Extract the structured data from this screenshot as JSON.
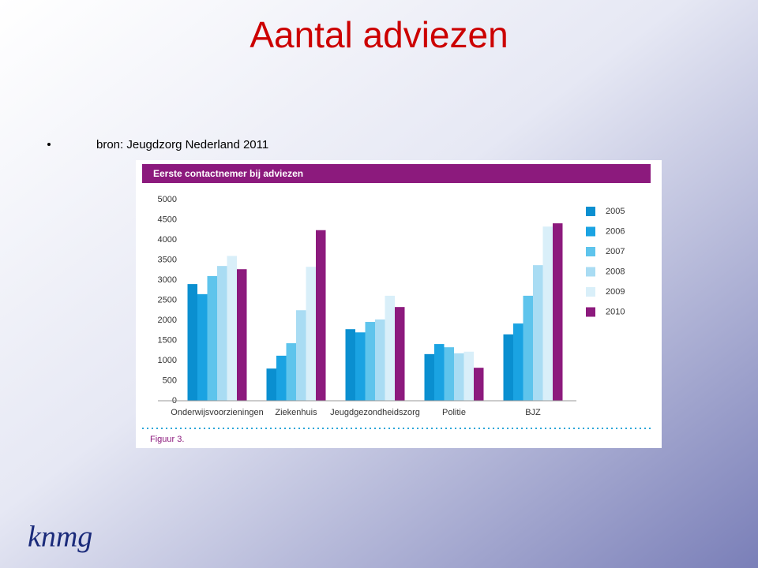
{
  "slide": {
    "title": "Aantal adviezen",
    "bullet": "bron: Jeugdzorg Nederland 2011",
    "logo": "knmg"
  },
  "chart_data": {
    "type": "bar",
    "title": "Eerste contactnemer bij adviezen",
    "caption": "Figuur 3.",
    "categories": [
      "Onderwijsvoorzieningen",
      "Ziekenhuis",
      "Jeugdgezondheidszorg",
      "Politie",
      "BJZ"
    ],
    "series": [
      {
        "name": "2005",
        "color": "#0a8fd0",
        "values": [
          2900,
          800,
          1780,
          1160,
          1650
        ]
      },
      {
        "name": "2006",
        "color": "#1aa3e2",
        "values": [
          2650,
          1120,
          1700,
          1410,
          1920
        ]
      },
      {
        "name": "2007",
        "color": "#5ec4ec",
        "values": [
          3100,
          1430,
          1960,
          1330,
          2610
        ]
      },
      {
        "name": "2008",
        "color": "#a9dcf3",
        "values": [
          3350,
          2250,
          2020,
          1180,
          3370
        ]
      },
      {
        "name": "2009",
        "color": "#d9eff9",
        "values": [
          3600,
          3330,
          2610,
          1220,
          4330
        ]
      },
      {
        "name": "2010",
        "color": "#8c1a7d",
        "values": [
          3270,
          4240,
          2330,
          820,
          4410
        ]
      }
    ],
    "ylim": [
      0,
      5000
    ],
    "yticks": [
      0,
      500,
      1000,
      1500,
      2000,
      2500,
      3000,
      3500,
      4000,
      4500,
      5000
    ],
    "grid": false,
    "legend": "right"
  }
}
